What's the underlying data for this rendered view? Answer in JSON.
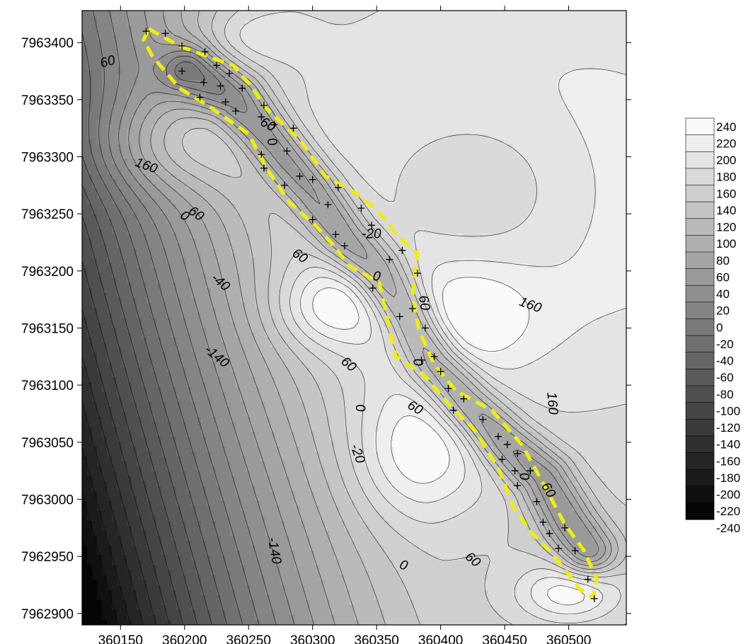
{
  "chart_data": {
    "type": "heatmap",
    "subtype": "filled-contour map",
    "title": "",
    "xlabel": "",
    "ylabel": "",
    "xlim": [
      360120,
      360545
    ],
    "ylim": [
      7962890,
      7963428
    ],
    "x_ticks": [
      360150,
      360200,
      360250,
      360300,
      360350,
      360400,
      360450,
      360500
    ],
    "x_tick_labels": [
      "360150",
      "360200",
      "360250",
      "360300",
      "360350",
      "360400",
      "360450",
      "360500"
    ],
    "y_ticks": [
      7962900,
      7962950,
      7963000,
      7963050,
      7963100,
      7963150,
      7963200,
      7963250,
      7963300,
      7963350,
      7963400
    ],
    "y_tick_labels": [
      "7962900",
      "7962950",
      "7963000",
      "7963050",
      "7963100",
      "7963150",
      "7963200",
      "7963250",
      "7963300",
      "7963350",
      "7963400"
    ],
    "colorbar": {
      "range": [
        -240,
        240
      ],
      "step": 20,
      "placement": "right",
      "colormap": "grayscale (black = low, white = high)",
      "labels": [
        "240",
        "220",
        "200",
        "180",
        "160",
        "140",
        "120",
        "100",
        "80",
        "60",
        "40",
        "20",
        "0",
        "-20",
        "-40",
        "-60",
        "-80",
        "-100",
        "-120",
        "-140",
        "-160",
        "-180",
        "-200",
        "-220",
        "-240"
      ]
    },
    "field_features": [
      {
        "kind": "regional-trend",
        "low_corner": "left",
        "value_range": [
          -230,
          150
        ]
      },
      {
        "kind": "high",
        "x": 360480,
        "y": 7963270,
        "amplitude": 70,
        "sx": 170,
        "sy": 150
      },
      {
        "kind": "low",
        "x": 360435,
        "y": 7963270,
        "amplitude": -50,
        "sx": 60,
        "sy": 55
      },
      {
        "kind": "high",
        "x": 360420,
        "y": 7963160,
        "amplitude": 60,
        "sx": 35,
        "sy": 30
      },
      {
        "kind": "high",
        "x": 360190,
        "y": 7963310,
        "amplitude": 70,
        "sx": 45,
        "sy": 30
      },
      {
        "kind": "high",
        "x": 360313,
        "y": 7963168,
        "amplitude": 70,
        "sx": 30,
        "sy": 25
      },
      {
        "kind": "high",
        "x": 360383,
        "y": 7963040,
        "amplitude": 70,
        "sx": 35,
        "sy": 40
      },
      {
        "kind": "high",
        "x": 360500,
        "y": 7962918,
        "amplitude": 80,
        "sx": 28,
        "sy": 18
      },
      {
        "kind": "high",
        "x": 360250,
        "y": 7963405,
        "amplitude": 40,
        "sx": 30,
        "sy": 18
      },
      {
        "kind": "trough",
        "path": [
          [
            360205,
            7963375
          ],
          [
            360240,
            7963350
          ],
          [
            360270,
            7963310
          ],
          [
            360300,
            7963270
          ],
          [
            360325,
            7963230
          ],
          [
            360350,
            7963200
          ],
          [
            360375,
            7963160
          ],
          [
            360395,
            7963120
          ],
          [
            360420,
            7963085
          ],
          [
            360450,
            7963050
          ],
          [
            360480,
            7963020
          ],
          [
            360500,
            7962980
          ],
          [
            360515,
            7962955
          ]
        ],
        "depth": -120,
        "width": 16
      }
    ],
    "contour_labels": [
      {
        "text": "60",
        "x": 360140,
        "y": 7963383,
        "angle": -15
      },
      {
        "text": "160",
        "x": 360170,
        "y": 7963292,
        "angle": 20
      },
      {
        "text": "60",
        "x": 360209,
        "y": 7963250,
        "angle": 35
      },
      {
        "text": "0",
        "x": 360200,
        "y": 7963248,
        "angle": 35
      },
      {
        "text": "-40",
        "x": 360228,
        "y": 7963190,
        "angle": 40
      },
      {
        "text": "-140",
        "x": 360225,
        "y": 7963125,
        "angle": 40
      },
      {
        "text": "60",
        "x": 360265,
        "y": 7963328,
        "angle": 30
      },
      {
        "text": "0",
        "x": 360268,
        "y": 7963313,
        "angle": 70
      },
      {
        "text": "60",
        "x": 360290,
        "y": 7963213,
        "angle": 35
      },
      {
        "text": "-20",
        "x": 360346,
        "y": 7963232,
        "angle": 0
      },
      {
        "text": "0",
        "x": 360350,
        "y": 7963195,
        "angle": 10
      },
      {
        "text": "60",
        "x": 360387,
        "y": 7963172,
        "angle": 80
      },
      {
        "text": "160",
        "x": 360470,
        "y": 7963170,
        "angle": 20
      },
      {
        "text": "60",
        "x": 360328,
        "y": 7963118,
        "angle": 40
      },
      {
        "text": "0",
        "x": 360337,
        "y": 7963080,
        "angle": 80
      },
      {
        "text": "-20",
        "x": 360335,
        "y": 7963040,
        "angle": 70
      },
      {
        "text": "0",
        "x": 360382,
        "y": 7963120,
        "angle": 80
      },
      {
        "text": "60",
        "x": 360380,
        "y": 7963080,
        "angle": 30
      },
      {
        "text": "160",
        "x": 360487,
        "y": 7963084,
        "angle": 85
      },
      {
        "text": "0",
        "x": 360465,
        "y": 7963020,
        "angle": 80
      },
      {
        "text": "60",
        "x": 360484,
        "y": 7963008,
        "angle": 60
      },
      {
        "text": "-140",
        "x": 360270,
        "y": 7962955,
        "angle": 80
      },
      {
        "text": "0",
        "x": 360371,
        "y": 7962942,
        "angle": 20
      },
      {
        "text": "60",
        "x": 360425,
        "y": 7962947,
        "angle": 40
      }
    ],
    "outline_dashed_color": "#f0ee0c",
    "outline_path": [
      [
        360172,
        7963412
      ],
      [
        360196,
        7963397
      ],
      [
        360220,
        7963387
      ],
      [
        360238,
        7963380
      ],
      [
        360252,
        7963362
      ],
      [
        360264,
        7963342
      ],
      [
        360290,
        7963315
      ],
      [
        360310,
        7963283
      ],
      [
        360331,
        7963270
      ],
      [
        360350,
        7963254
      ],
      [
        360367,
        7963230
      ],
      [
        360382,
        7963215
      ],
      [
        360378,
        7963180
      ],
      [
        360383,
        7963148
      ],
      [
        360395,
        7963118
      ],
      [
        360412,
        7963095
      ],
      [
        360440,
        7963078
      ],
      [
        360464,
        7963047
      ],
      [
        360482,
        7963010
      ],
      [
        360497,
        7962978
      ],
      [
        360512,
        7962955
      ],
      [
        360522,
        7962930
      ],
      [
        360519,
        7962914
      ],
      [
        360508,
        7962922
      ],
      [
        360496,
        7962940
      ],
      [
        360485,
        7962955
      ],
      [
        360470,
        7962972
      ],
      [
        360456,
        7962995
      ],
      [
        360446,
        7963025
      ],
      [
        360427,
        7963060
      ],
      [
        360405,
        7963085
      ],
      [
        360386,
        7963110
      ],
      [
        360365,
        7963125
      ],
      [
        360358,
        7963160
      ],
      [
        360352,
        7963190
      ],
      [
        360328,
        7963205
      ],
      [
        360318,
        7963220
      ],
      [
        360302,
        7963240
      ],
      [
        360282,
        7963260
      ],
      [
        360264,
        7963290
      ],
      [
        360250,
        7963320
      ],
      [
        360218,
        7963345
      ],
      [
        360196,
        7963360
      ],
      [
        360175,
        7963388
      ],
      [
        360168,
        7963402
      ],
      [
        360172,
        7963412
      ]
    ],
    "station_markers": [
      [
        360170,
        7963410
      ],
      [
        360185,
        7963408
      ],
      [
        360198,
        7963397
      ],
      [
        360216,
        7963392
      ],
      [
        360235,
        7963373
      ],
      [
        360198,
        7963375
      ],
      [
        360225,
        7963380
      ],
      [
        360215,
        7963365
      ],
      [
        360212,
        7963352
      ],
      [
        360228,
        7963362
      ],
      [
        360245,
        7963360
      ],
      [
        360232,
        7963348
      ],
      [
        360240,
        7963340
      ],
      [
        360262,
        7963345
      ],
      [
        360260,
        7963335
      ],
      [
        360270,
        7963328
      ],
      [
        360285,
        7963325
      ],
      [
        360260,
        7963302
      ],
      [
        360280,
        7963305
      ],
      [
        360262,
        7963290
      ],
      [
        360290,
        7963283
      ],
      [
        360278,
        7963275
      ],
      [
        360300,
        7963280
      ],
      [
        360320,
        7963273
      ],
      [
        360312,
        7963258
      ],
      [
        360300,
        7963245
      ],
      [
        360318,
        7963232
      ],
      [
        360338,
        7963255
      ],
      [
        360325,
        7963222
      ],
      [
        360346,
        7963240
      ],
      [
        360360,
        7963210
      ],
      [
        360370,
        7963218
      ],
      [
        360382,
        7963198
      ],
      [
        360347,
        7963185
      ],
      [
        360368,
        7963160
      ],
      [
        360378,
        7963167
      ],
      [
        360388,
        7963150
      ],
      [
        360395,
        7963125
      ],
      [
        360385,
        7963122
      ],
      [
        360400,
        7963112
      ],
      [
        360406,
        7963097
      ],
      [
        360418,
        7963088
      ],
      [
        360410,
        7963078
      ],
      [
        360433,
        7963070
      ],
      [
        360445,
        7963055
      ],
      [
        360452,
        7963048
      ],
      [
        360448,
        7963035
      ],
      [
        360460,
        7963040
      ],
      [
        360458,
        7963025
      ],
      [
        360470,
        7963025
      ],
      [
        360460,
        7963012
      ],
      [
        360475,
        7962998
      ],
      [
        360480,
        7962980
      ],
      [
        360497,
        7962975
      ],
      [
        360485,
        7962970
      ],
      [
        360492,
        7962957
      ],
      [
        360505,
        7962955
      ],
      [
        360515,
        7962930
      ],
      [
        360520,
        7962913
      ]
    ]
  }
}
